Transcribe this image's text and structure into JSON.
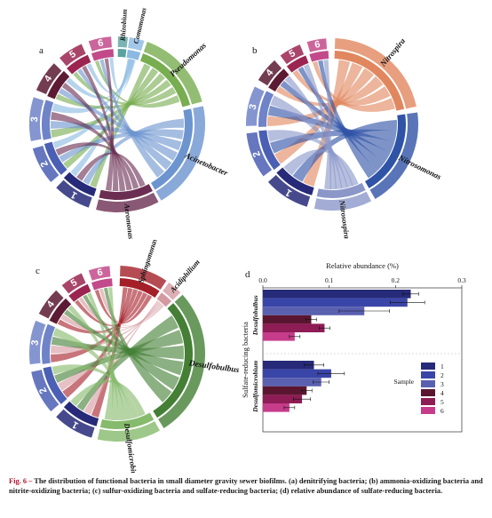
{
  "colors": {
    "s1": "#262a78",
    "s2": "#4b5fb4",
    "s3": "#6f83c8",
    "s4": "#5c1a33",
    "s5": "#9b2450",
    "s6": "#c24a8a",
    "Rhizobium": "#5aa3a0",
    "Comamonas": "#8bb9e2",
    "Pseudomonas": "#78ad50",
    "Acinetobacter": "#6c94cf",
    "Aeromonas": "#6b2e52",
    "Nitrospira": "#e1875f",
    "Nitrosomonas": "#2f53a6",
    "Sphingomonas": "#a41f28",
    "Acidiphilium": "#d59aa0",
    "Desulfobulbus": "#447f35",
    "Desulfomicrobium": "#86ba6c",
    "bar1": "#262a78",
    "bar2": "#3a45a8",
    "bar3": "#5a60b0",
    "bar4": "#5a1630",
    "bar5": "#8e1c55",
    "bar6": "#c63c8b"
  },
  "chord_a": {
    "panel_label": "a",
    "samples": [
      "1",
      "2",
      "3",
      "4",
      "5",
      "6"
    ],
    "genera": [
      "Rhizobium",
      "Comamonas",
      "Pseudomonas",
      "Acinetobacter",
      "Aeromonas"
    ]
  },
  "chord_b": {
    "panel_label": "b",
    "samples": [
      "1",
      "2",
      "3",
      "4",
      "5",
      "6"
    ],
    "genera": [
      "Nitrospira",
      "Nitrosomonas",
      "Nitrosospira"
    ]
  },
  "chord_c": {
    "panel_label": "c",
    "samples": [
      "1",
      "2",
      "3",
      "4",
      "5",
      "6"
    ],
    "genera": [
      "Sphingomonas",
      "Acidiphilium",
      "Desulfobulbus",
      "Desulfomicrobium"
    ]
  },
  "chart_data": {
    "type": "bar",
    "panel_label": "d",
    "orientation": "horizontal",
    "title": "Relative abundance (%)",
    "ylabel": "Sulfate-reducing bacteria",
    "xlim": [
      0,
      0.3
    ],
    "x_ticks": [
      "0.0",
      "0.1",
      "0.2",
      "0.3"
    ],
    "categories": [
      "Desulfobulbus",
      "Desulfomicrobium"
    ],
    "legend_title": "Sample",
    "legend_position": "bottom-right",
    "series": [
      {
        "name": "1",
        "values": [
          0.223,
          0.077
        ],
        "errors": [
          0.012,
          0.015
        ]
      },
      {
        "name": "2",
        "values": [
          0.218,
          0.103
        ],
        "errors": [
          0.026,
          0.02
        ]
      },
      {
        "name": "3",
        "values": [
          0.153,
          0.088
        ],
        "errors": [
          0.038,
          0.012
        ]
      },
      {
        "name": "4",
        "values": [
          0.073,
          0.066
        ],
        "errors": [
          0.008,
          0.008
        ]
      },
      {
        "name": "5",
        "values": [
          0.093,
          0.059
        ],
        "errors": [
          0.008,
          0.013
        ]
      },
      {
        "name": "6",
        "values": [
          0.048,
          0.04
        ],
        "errors": [
          0.008,
          0.008
        ]
      }
    ]
  },
  "caption": {
    "fig_label": "Fig. 6 –",
    "text": " The distribution of functional bacteria in small diameter gravity sewer biofilms. (a) denitrifying bacteria; (b) ammonia-oxidizing bacteria and nitrite-oxidizing bacteria; (c) sulfur-oxidizing bacteria and sulfate-reducing bacteria; (d) relative abundance of sulfate-reducing bacteria."
  }
}
